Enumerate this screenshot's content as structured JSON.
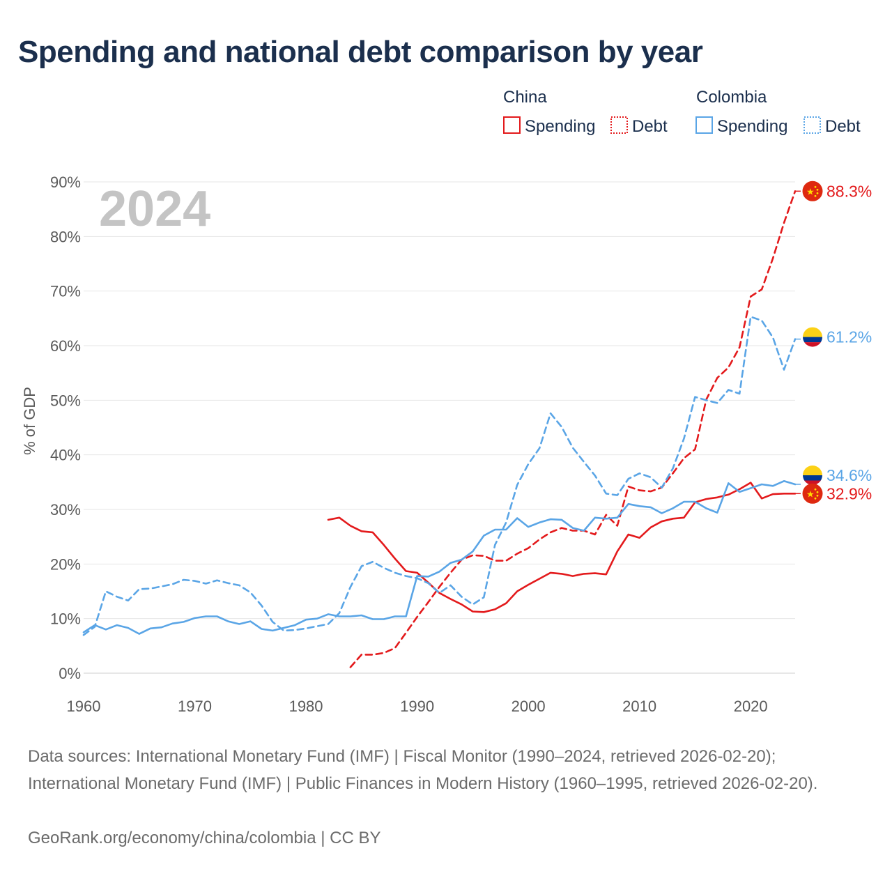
{
  "title": "Spending and national debt comparison by year",
  "footer": {
    "sources": "Data sources: International Monetary Fund (IMF) | Fiscal Monitor (1990–2024, retrieved 2026-02-20); International Monetary Fund (IMF) | Public Finances in Modern History (1960–1995, retrieved 2026-02-20).",
    "credit": "GeoRank.org/economy/china/colombia | CC BY"
  },
  "colors": {
    "china": "#e31a1c",
    "colombia": "#5aa5e6",
    "grid": "#e6e6e6",
    "year": "#c4c4c4"
  },
  "chart_data": {
    "type": "line",
    "title": "Spending and national debt comparison by year",
    "xlabel": "",
    "ylabel": "% of GDP",
    "xlim": [
      1960,
      2024
    ],
    "ylim": [
      0,
      90
    ],
    "x_ticks": [
      1960,
      1970,
      1980,
      1990,
      2000,
      2010,
      2020
    ],
    "y_ticks": [
      0,
      10,
      20,
      30,
      40,
      50,
      60,
      70,
      80,
      90
    ],
    "y_tick_labels": [
      "0%",
      "10%",
      "20%",
      "30%",
      "40%",
      "50%",
      "60%",
      "70%",
      "80%",
      "90%"
    ],
    "year_label": "2024",
    "legend": {
      "groups": [
        {
          "name": "China",
          "items": [
            {
              "label": "Spending",
              "style": "solid"
            },
            {
              "label": "Debt",
              "style": "dotted"
            }
          ]
        },
        {
          "name": "Colombia",
          "items": [
            {
              "label": "Spending",
              "style": "solid"
            },
            {
              "label": "Debt",
              "style": "dotted"
            }
          ]
        }
      ]
    },
    "series": [
      {
        "name": "China Spending",
        "country": "china",
        "style": "solid",
        "x": [
          1982,
          1983,
          1984,
          1985,
          1986,
          1987,
          1988,
          1989,
          1990,
          1991,
          1992,
          1993,
          1994,
          1995,
          1996,
          1997,
          1998,
          1999,
          2000,
          2001,
          2002,
          2003,
          2004,
          2005,
          2006,
          2007,
          2008,
          2009,
          2010,
          2011,
          2012,
          2013,
          2014,
          2015,
          2016,
          2017,
          2018,
          2019,
          2020,
          2021,
          2022,
          2023,
          2024
        ],
        "values": [
          28.1,
          28.5,
          27.0,
          26.0,
          25.8,
          23.5,
          21.0,
          18.7,
          18.4,
          16.6,
          14.7,
          13.6,
          12.6,
          11.3,
          11.2,
          11.7,
          12.8,
          15.0,
          16.2,
          17.3,
          18.4,
          18.2,
          17.8,
          18.2,
          18.3,
          18.1,
          22.3,
          25.4,
          24.8,
          26.7,
          27.8,
          28.3,
          28.5,
          31.3,
          31.9,
          32.2,
          32.7,
          33.7,
          34.9,
          32.0,
          32.8,
          32.9,
          32.9
        ],
        "end_label": "32.9%"
      },
      {
        "name": "China Debt",
        "country": "china",
        "style": "dashed",
        "x": [
          1984,
          1985,
          1986,
          1987,
          1988,
          1989,
          1990,
          1991,
          1992,
          1993,
          1994,
          1995,
          1996,
          1997,
          1998,
          1999,
          2000,
          2001,
          2002,
          2003,
          2004,
          2005,
          2006,
          2007,
          2008,
          2009,
          2010,
          2011,
          2012,
          2013,
          2014,
          2015,
          2016,
          2017,
          2018,
          2019,
          2020,
          2021,
          2022,
          2023,
          2024
        ],
        "values": [
          1.1,
          3.4,
          3.4,
          3.7,
          4.6,
          7.4,
          10.3,
          13.0,
          15.8,
          18.4,
          20.8,
          21.6,
          21.5,
          20.6,
          20.6,
          21.9,
          22.9,
          24.5,
          25.8,
          26.6,
          26.1,
          26.1,
          25.4,
          29.0,
          27.0,
          34.2,
          33.5,
          33.3,
          34.0,
          36.6,
          39.4,
          41.0,
          50.1,
          54.1,
          56.0,
          59.7,
          69.0,
          70.3,
          76.0,
          82.5,
          88.3
        ],
        "end_label": "88.3%"
      },
      {
        "name": "Colombia Spending",
        "country": "colombia",
        "style": "solid",
        "x": [
          1960,
          1961,
          1962,
          1963,
          1964,
          1965,
          1966,
          1967,
          1968,
          1969,
          1970,
          1971,
          1972,
          1973,
          1974,
          1975,
          1976,
          1977,
          1978,
          1979,
          1980,
          1981,
          1982,
          1983,
          1984,
          1985,
          1986,
          1987,
          1988,
          1989,
          1990,
          1991,
          1992,
          1993,
          1994,
          1995,
          1996,
          1997,
          1998,
          1999,
          2000,
          2001,
          2002,
          2003,
          2004,
          2005,
          2006,
          2007,
          2008,
          2009,
          2010,
          2011,
          2012,
          2013,
          2014,
          2015,
          2016,
          2017,
          2018,
          2019,
          2020,
          2021,
          2022,
          2023,
          2024
        ],
        "values": [
          7.5,
          8.8,
          8.0,
          8.8,
          8.3,
          7.2,
          8.2,
          8.4,
          9.1,
          9.4,
          10.1,
          10.4,
          10.4,
          9.5,
          9.0,
          9.5,
          8.1,
          7.8,
          8.3,
          8.8,
          9.8,
          10.0,
          10.8,
          10.4,
          10.4,
          10.6,
          9.9,
          9.9,
          10.4,
          10.4,
          17.8,
          17.7,
          18.6,
          20.2,
          20.8,
          22.3,
          25.2,
          26.3,
          26.3,
          28.4,
          26.8,
          27.6,
          28.2,
          28.1,
          26.6,
          26.1,
          28.5,
          28.3,
          28.5,
          31.0,
          30.6,
          30.4,
          29.3,
          30.2,
          31.4,
          31.4,
          30.2,
          29.4,
          34.8,
          33.2,
          33.9,
          34.6,
          34.3,
          35.2,
          34.6
        ],
        "end_label": "34.6%"
      },
      {
        "name": "Colombia Debt",
        "country": "colombia",
        "style": "dashed",
        "x": [
          1960,
          1961,
          1962,
          1963,
          1964,
          1965,
          1966,
          1967,
          1968,
          1969,
          1970,
          1971,
          1972,
          1973,
          1974,
          1975,
          1976,
          1977,
          1978,
          1979,
          1980,
          1981,
          1982,
          1983,
          1984,
          1985,
          1986,
          1987,
          1988,
          1989,
          1990,
          1991,
          1992,
          1993,
          1994,
          1995,
          1996,
          1997,
          1998,
          1999,
          2000,
          2001,
          2002,
          2003,
          2004,
          2005,
          2006,
          2007,
          2008,
          2009,
          2010,
          2011,
          2012,
          2013,
          2014,
          2015,
          2016,
          2017,
          2018,
          2019,
          2020,
          2021,
          2022,
          2023,
          2024
        ],
        "values": [
          7.0,
          8.5,
          15.0,
          14.0,
          13.3,
          15.4,
          15.5,
          15.9,
          16.3,
          17.1,
          16.9,
          16.4,
          17.0,
          16.5,
          16.1,
          14.8,
          12.4,
          9.4,
          7.8,
          7.9,
          8.2,
          8.6,
          9.0,
          11.0,
          15.8,
          19.6,
          20.4,
          19.3,
          18.4,
          17.8,
          17.4,
          16.5,
          14.7,
          16.1,
          14.0,
          12.6,
          13.9,
          23.5,
          27.6,
          34.5,
          38.3,
          41.2,
          47.6,
          45.1,
          41.3,
          38.7,
          36.2,
          32.9,
          32.6,
          35.6,
          36.6,
          35.9,
          34.0,
          37.5,
          43.0,
          50.6,
          50.0,
          49.5,
          51.9,
          51.2,
          65.3,
          64.6,
          61.5,
          55.6,
          61.2
        ],
        "end_label": "61.2%"
      }
    ]
  }
}
